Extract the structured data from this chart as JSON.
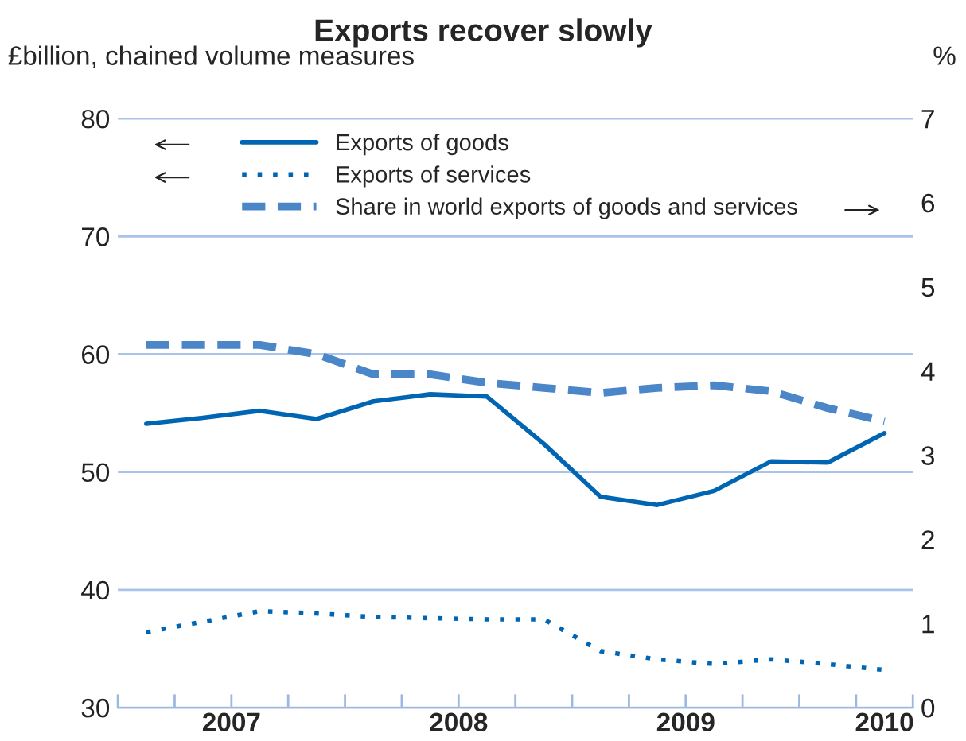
{
  "chart_data": {
    "type": "line",
    "title": "Exports recover slowly",
    "ylabel": "£billion, chained volume measures",
    "y2label": "%",
    "x": [
      2007.125,
      2007.375,
      2007.625,
      2007.875,
      2008.125,
      2008.375,
      2008.625,
      2008.875,
      2009.125,
      2009.375,
      2009.625,
      2009.875,
      2010.125,
      2010.375
    ],
    "series": [
      {
        "name": "Exports of goods",
        "color": "#0066b3",
        "line_style": "solid",
        "axis": "y",
        "values": [
          54.1,
          54.6,
          55.2,
          54.5,
          56.0,
          56.6,
          56.4,
          52.4,
          47.9,
          47.2,
          48.4,
          50.9,
          50.8,
          53.3
        ]
      },
      {
        "name": "Exports of services",
        "color": "#0066b3",
        "line_style": "dotted",
        "axis": "y",
        "values": [
          36.4,
          37.3,
          38.2,
          38.0,
          37.7,
          37.6,
          37.5,
          37.5,
          34.8,
          34.1,
          33.7,
          34.1,
          33.7,
          33.2
        ]
      },
      {
        "name": "Share in world exports of goods and services",
        "color": "#4a86c8",
        "line_style": "dashed",
        "axis": "y2",
        "values": [
          4.31,
          4.31,
          4.31,
          4.2,
          3.96,
          3.96,
          3.86,
          3.8,
          3.74,
          3.8,
          3.83,
          3.76,
          3.56,
          3.4
        ]
      }
    ],
    "xlim": [
      2007,
      2010.5
    ],
    "xticks": [
      {
        "value": 2007,
        "label": null
      },
      {
        "value": 2007.25,
        "label": null
      },
      {
        "value": 2007.5,
        "label": "2007"
      },
      {
        "value": 2007.75,
        "label": null
      },
      {
        "value": 2008,
        "label": null
      },
      {
        "value": 2008.25,
        "label": null
      },
      {
        "value": 2008.5,
        "label": "2008"
      },
      {
        "value": 2008.75,
        "label": null
      },
      {
        "value": 2009,
        "label": null
      },
      {
        "value": 2009.25,
        "label": null
      },
      {
        "value": 2009.5,
        "label": "2009"
      },
      {
        "value": 2009.75,
        "label": null
      },
      {
        "value": 2010,
        "label": null
      },
      {
        "value": 2010.25,
        "label": null
      },
      {
        "value": 2010.375,
        "label": "2010"
      },
      {
        "value": 2010.5,
        "label": null
      }
    ],
    "ylim": [
      30,
      80
    ],
    "yticks": [
      30,
      40,
      50,
      60,
      70,
      80
    ],
    "y2lim": [
      0,
      7
    ],
    "y2ticks": [
      0,
      1,
      2,
      3,
      4,
      5,
      6,
      7
    ],
    "grid": "y",
    "legend": "top left"
  }
}
